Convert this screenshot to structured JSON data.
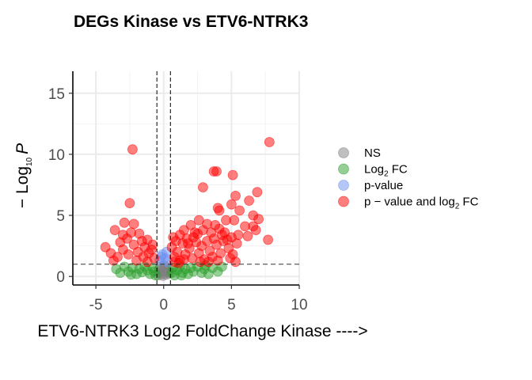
{
  "chart_data": {
    "type": "scatter",
    "title": "DEGs Kinase vs ETV6-NTRK3",
    "xlabel": "ETV6-NTRK3   Log2 FoldChange   Kinase ---->",
    "ylabel_prefix": "− Log",
    "ylabel_sub": "10",
    "ylabel_var": "P",
    "xlim": [
      -6.7,
      10
    ],
    "ylim": [
      -0.7,
      16.8
    ],
    "x_ticks": [
      -5,
      0,
      5,
      10
    ],
    "y_ticks": [
      0,
      5,
      10,
      15
    ],
    "x_tick_labels": [
      "-5",
      "0",
      "5",
      "10"
    ],
    "y_tick_labels": [
      "0",
      "5",
      "10",
      "15"
    ],
    "grid": true,
    "legend_position": "right",
    "cutoffs": {
      "fc": [
        -0.5,
        0.5
      ],
      "p_log10": 1.0
    },
    "colors": {
      "ns": "#808080",
      "fc": "#2ca02c",
      "pvalue": "#6b8ff0",
      "both": "#ff0000"
    },
    "legend": [
      {
        "label": "NS",
        "sub": "",
        "suffix": "",
        "color": "#808080"
      },
      {
        "label": "Log",
        "sub": "2",
        "suffix": " FC",
        "color": "#2ca02c"
      },
      {
        "label": "p-value",
        "sub": "",
        "suffix": "",
        "color": "#6b8ff0"
      },
      {
        "label": "p − value and log",
        "sub": "2",
        "suffix": " FC",
        "color": "#ff0000"
      }
    ],
    "series": [
      {
        "name": "NS",
        "points": [
          [
            -0.4,
            0.1
          ],
          [
            -0.3,
            0.3
          ],
          [
            -0.2,
            0.5
          ],
          [
            -0.1,
            0.2
          ],
          [
            0.0,
            0.4
          ],
          [
            0.1,
            0.6
          ],
          [
            0.2,
            0.15
          ],
          [
            0.3,
            0.35
          ],
          [
            0.4,
            0.25
          ],
          [
            -0.35,
            0.55
          ],
          [
            0.15,
            0.75
          ],
          [
            -0.05,
            0.05
          ],
          [
            0.05,
            0.9
          ],
          [
            -0.25,
            0.8
          ],
          [
            0.35,
            0.5
          ]
        ]
      },
      {
        "name": "Log2 FC",
        "points": [
          [
            -3.5,
            0.6
          ],
          [
            -3.2,
            0.3
          ],
          [
            -2.9,
            0.8
          ],
          [
            -2.6,
            0.4
          ],
          [
            -2.3,
            0.7
          ],
          [
            -2.0,
            0.2
          ],
          [
            -1.8,
            0.6
          ],
          [
            -1.6,
            0.35
          ],
          [
            -1.4,
            0.8
          ],
          [
            -1.2,
            0.5
          ],
          [
            -1.0,
            0.2
          ],
          [
            -0.8,
            0.7
          ],
          [
            -0.7,
            0.4
          ],
          [
            -0.6,
            0.1
          ],
          [
            0.6,
            0.3
          ],
          [
            0.7,
            0.7
          ],
          [
            0.8,
            0.1
          ],
          [
            1.0,
            0.5
          ],
          [
            1.2,
            0.8
          ],
          [
            1.4,
            0.3
          ],
          [
            1.6,
            0.6
          ],
          [
            1.8,
            0.2
          ],
          [
            2.0,
            0.7
          ],
          [
            2.2,
            0.4
          ],
          [
            2.5,
            0.8
          ],
          [
            2.8,
            0.3
          ],
          [
            3.0,
            0.6
          ],
          [
            3.3,
            0.2
          ],
          [
            3.6,
            0.7
          ],
          [
            4.0,
            0.4
          ],
          [
            4.3,
            0.8
          ],
          [
            -2.4,
            0.15
          ],
          [
            1.3,
            0.1
          ],
          [
            3.1,
            0.9
          ]
        ]
      },
      {
        "name": "p-value",
        "points": [
          [
            -0.3,
            1.3
          ],
          [
            -0.1,
            1.8
          ],
          [
            0.1,
            1.5
          ],
          [
            0.3,
            1.2
          ],
          [
            0.2,
            2.0
          ],
          [
            -0.2,
            1.6
          ]
        ]
      },
      {
        "name": "p − value and log2 FC",
        "points": [
          [
            -2.3,
            10.4
          ],
          [
            -2.5,
            6.0
          ],
          [
            -2.9,
            4.4
          ],
          [
            -3.6,
            3.8
          ],
          [
            -3.0,
            3.4
          ],
          [
            -2.2,
            4.3
          ],
          [
            -1.8,
            3.5
          ],
          [
            -1.2,
            3.0
          ],
          [
            -0.8,
            2.6
          ],
          [
            -4.3,
            2.4
          ],
          [
            -3.9,
            1.9
          ],
          [
            -3.4,
            1.6
          ],
          [
            -3.0,
            2.2
          ],
          [
            -2.6,
            1.8
          ],
          [
            -2.2,
            2.6
          ],
          [
            -1.9,
            2.0
          ],
          [
            -1.5,
            1.6
          ],
          [
            -1.1,
            1.9
          ],
          [
            -0.7,
            1.5
          ],
          [
            -3.2,
            2.8
          ],
          [
            -2.7,
            3.1
          ],
          [
            -1.4,
            2.4
          ],
          [
            -2.0,
            1.3
          ],
          [
            -1.2,
            1.2
          ],
          [
            -0.9,
            2.2
          ],
          [
            -3.7,
            1.3
          ],
          [
            -2.4,
            3.6
          ],
          [
            -1.6,
            2.9
          ],
          [
            7.8,
            11.0
          ],
          [
            3.7,
            8.6
          ],
          [
            3.9,
            8.6
          ],
          [
            5.1,
            8.3
          ],
          [
            2.9,
            7.3
          ],
          [
            6.9,
            6.9
          ],
          [
            5.3,
            6.6
          ],
          [
            4.0,
            5.6
          ],
          [
            4.1,
            5.4
          ],
          [
            5.0,
            5.9
          ],
          [
            5.6,
            5.4
          ],
          [
            6.3,
            6.2
          ],
          [
            6.6,
            5.0
          ],
          [
            7.0,
            4.7
          ],
          [
            6.6,
            4.1
          ],
          [
            6.8,
            3.8
          ],
          [
            5.2,
            4.6
          ],
          [
            4.6,
            4.6
          ],
          [
            3.2,
            4.3
          ],
          [
            2.6,
            4.6
          ],
          [
            2.0,
            4.2
          ],
          [
            1.5,
            3.8
          ],
          [
            1.2,
            3.4
          ],
          [
            1.7,
            3.1
          ],
          [
            2.3,
            3.6
          ],
          [
            2.9,
            3.8
          ],
          [
            3.5,
            3.6
          ],
          [
            4.1,
            3.9
          ],
          [
            4.5,
            3.6
          ],
          [
            5.5,
            3.4
          ],
          [
            6.2,
            3.3
          ],
          [
            6.0,
            4.1
          ],
          [
            7.7,
            3.0
          ],
          [
            0.7,
            3.2
          ],
          [
            0.6,
            2.4
          ],
          [
            0.8,
            1.6
          ],
          [
            1.0,
            2.0
          ],
          [
            1.2,
            1.3
          ],
          [
            1.4,
            2.7
          ],
          [
            1.6,
            1.8
          ],
          [
            1.9,
            2.3
          ],
          [
            2.1,
            1.5
          ],
          [
            2.4,
            2.8
          ],
          [
            2.6,
            1.9
          ],
          [
            2.8,
            2.5
          ],
          [
            3.0,
            1.4
          ],
          [
            3.2,
            2.9
          ],
          [
            3.4,
            2.1
          ],
          [
            3.6,
            1.6
          ],
          [
            3.9,
            2.6
          ],
          [
            4.2,
            1.9
          ],
          [
            4.4,
            2.9
          ],
          [
            4.8,
            2.3
          ],
          [
            5.1,
            1.8
          ],
          [
            5.4,
            2.7
          ],
          [
            5.0,
            3.2
          ],
          [
            4.7,
            3.0
          ],
          [
            3.7,
            3.1
          ],
          [
            2.2,
            3.2
          ],
          [
            1.8,
            2.7
          ],
          [
            0.9,
            2.9
          ],
          [
            1.1,
            1.1
          ],
          [
            2.7,
            1.2
          ],
          [
            3.3,
            1.2
          ],
          [
            4.0,
            1.3
          ],
          [
            4.9,
            1.5
          ],
          [
            5.3,
            1.2
          ],
          [
            0.8,
            1.2
          ],
          [
            1.5,
            1.4
          ],
          [
            2.5,
            3.5
          ],
          [
            3.8,
            4.2
          ],
          [
            4.3,
            3.4
          ]
        ]
      }
    ]
  }
}
